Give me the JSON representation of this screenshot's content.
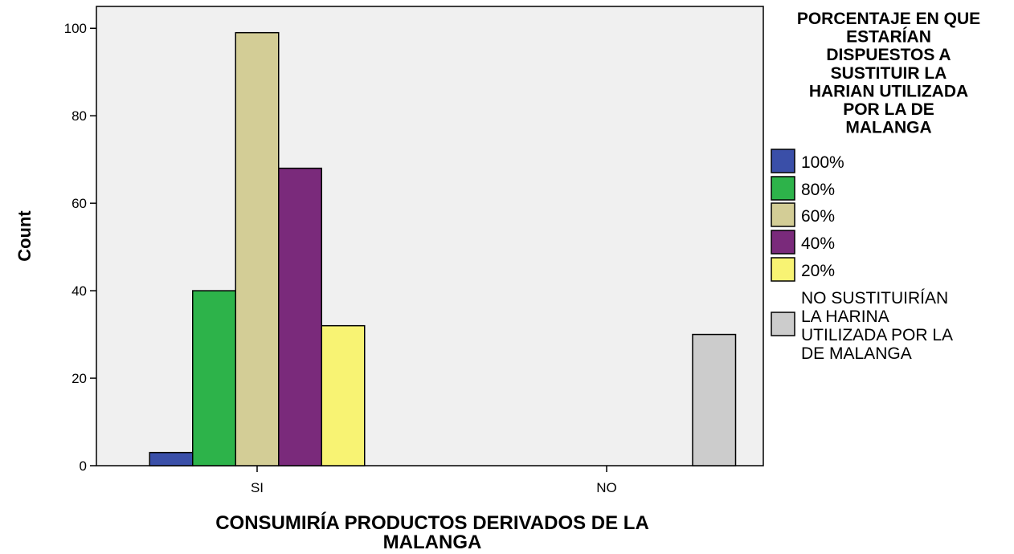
{
  "chart_data": {
    "type": "bar",
    "categories": [
      "SI",
      "NO"
    ],
    "series": [
      {
        "name": "100%",
        "values": [
          3,
          0
        ],
        "color": "#3a4fa8"
      },
      {
        "name": "80%",
        "values": [
          40,
          0
        ],
        "color": "#2db34a"
      },
      {
        "name": "60%",
        "values": [
          99,
          0
        ],
        "color": "#d3cd96"
      },
      {
        "name": "40%",
        "values": [
          68,
          0
        ],
        "color": "#7a2a7b"
      },
      {
        "name": "20%",
        "values": [
          32,
          0
        ],
        "color": "#f8f373"
      },
      {
        "name": "NO SUSTITUIRÍAN LA HARINA UTILIZADA POR LA DE MALANGA",
        "values": [
          0,
          30
        ],
        "color": "#cccccc"
      }
    ],
    "xlabel": "CONSUMIRÍA PRODUCTOS DERIVADOS DE LA MALANGA",
    "ylabel": "Count",
    "ylim": [
      0,
      105
    ],
    "yticks": [
      0,
      20,
      40,
      60,
      80,
      100
    ],
    "legend": {
      "title": "PORCENTAJE EN QUE ESTARÍAN DISPUESTOS A SUSTITUIR LA HARIAN UTILIZADA POR LA DE MALANGA",
      "placement": "right"
    },
    "grid": false,
    "plot_background": "#f0f0f0"
  }
}
